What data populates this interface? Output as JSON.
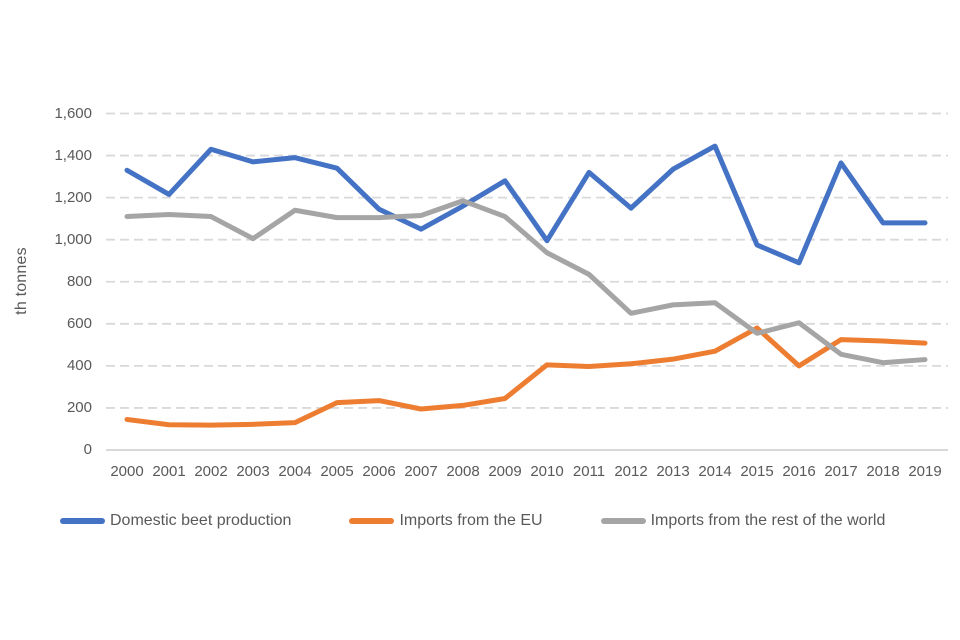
{
  "chart_data": {
    "type": "line",
    "title": "",
    "xlabel": "",
    "ylabel": "th tonnes",
    "x": [
      "2000",
      "2001",
      "2002",
      "2003",
      "2004",
      "2005",
      "2006",
      "2007",
      "2008",
      "2009",
      "2010",
      "2011",
      "2012",
      "2013",
      "2014",
      "2015",
      "2016",
      "2017",
      "2018",
      "2019"
    ],
    "series": [
      {
        "name": "Domestic beet production",
        "color": "#4472C4",
        "values": [
          1330,
          1215,
          1430,
          1370,
          1390,
          1340,
          1145,
          1050,
          1160,
          1280,
          995,
          1320,
          1150,
          1335,
          1445,
          975,
          890,
          1365,
          1080,
          1080
        ]
      },
      {
        "name": "Imports from the EU",
        "color": "#ED7D31",
        "values": [
          145,
          120,
          118,
          122,
          130,
          225,
          235,
          195,
          212,
          245,
          405,
          397,
          410,
          432,
          470,
          580,
          400,
          525,
          518,
          508
        ]
      },
      {
        "name": "Imports from the rest of the world",
        "color": "#A5A5A5",
        "values": [
          1110,
          1120,
          1110,
          1005,
          1140,
          1105,
          1105,
          1115,
          1185,
          1110,
          938,
          835,
          650,
          690,
          700,
          555,
          605,
          455,
          415,
          430
        ]
      }
    ],
    "ylim": [
      0,
      1600
    ],
    "y_tick_step": 200,
    "y_tick_labels": [
      "0",
      "200",
      "400",
      "600",
      "800",
      "1,000",
      "1,200",
      "1,400",
      "1,600"
    ],
    "grid": "horizontal-dashed",
    "legend_position": "bottom"
  },
  "style": {
    "grid_color": "#D9D9D9",
    "axis_line_color": "#D2D2D2",
    "tick_text_color": "#595959",
    "background": "#FFFFFF"
  }
}
